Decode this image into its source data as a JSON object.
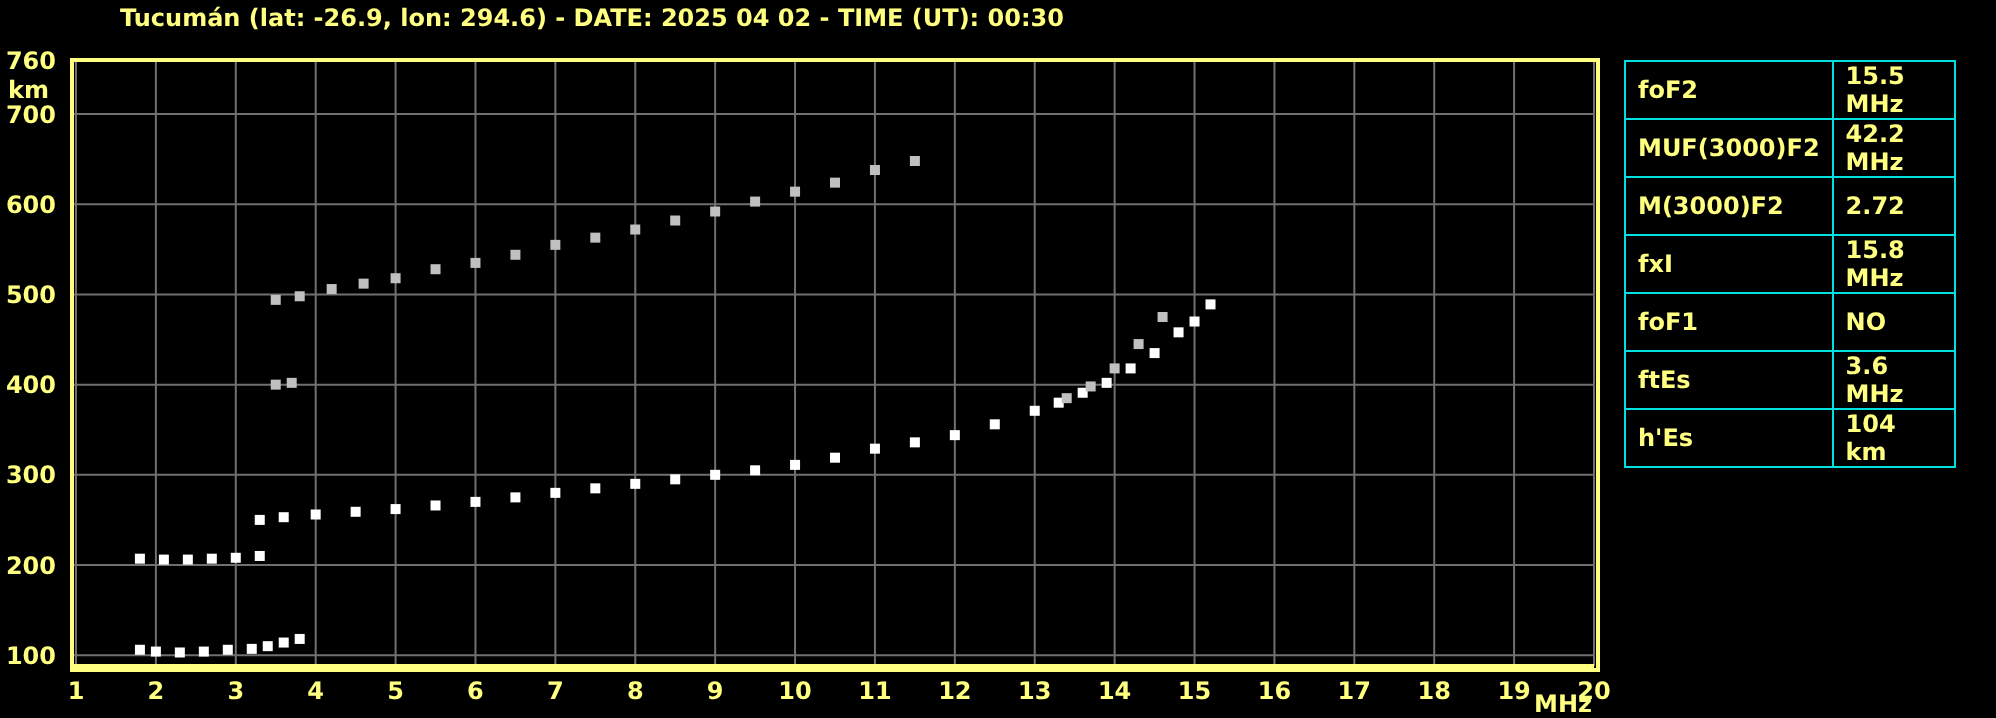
{
  "chart_data": [
    {
      "type": "scatter",
      "title": "Tucumán (lat: -26.9, lon: 294.6) - DATE: 2025 04 02 - TIME (UT): 00:30",
      "xlabel": "MHz",
      "ylabel": "km",
      "xlim": [
        0.95,
        20
      ],
      "ylim": [
        88,
        760
      ],
      "xticks": [
        1,
        2,
        3,
        4,
        5,
        6,
        7,
        8,
        9,
        10,
        11,
        12,
        13,
        14,
        15,
        16,
        17,
        18,
        19,
        20
      ],
      "yticks": [
        100,
        200,
        300,
        400,
        500,
        600,
        700,
        760
      ],
      "grid": true,
      "legend": false,
      "marker": "square",
      "series": [
        {
          "color": "#ffffff",
          "x": [
            1.8,
            2.0,
            2.3,
            2.6,
            2.9,
            3.2,
            3.4,
            3.6,
            3.8
          ],
          "values": [
            106,
            104,
            103,
            104,
            106,
            107,
            110,
            114,
            118
          ]
        },
        {
          "color": "#ffffff",
          "x": [
            1.8,
            2.1,
            2.4,
            2.7,
            3.0,
            3.3
          ],
          "values": [
            207,
            206,
            206,
            207,
            208,
            210
          ]
        },
        {
          "color": "#ffffff",
          "x": [
            3.3,
            3.6,
            4.0,
            4.5,
            5.0,
            5.5,
            6.0,
            6.5,
            7.0,
            7.5,
            8.0,
            8.5,
            9.0,
            9.5,
            10.0,
            10.5,
            11.0,
            11.5,
            12.0,
            12.5,
            13.0,
            13.3,
            13.6,
            13.9,
            14.2,
            14.5,
            14.8,
            15.0,
            15.2
          ],
          "values": [
            250,
            253,
            256,
            259,
            262,
            266,
            270,
            275,
            280,
            285,
            290,
            295,
            300,
            305,
            311,
            319,
            329,
            336,
            344,
            356,
            371,
            380,
            391,
            402,
            418,
            435,
            458,
            470,
            489
          ]
        },
        {
          "color": "#c0c0c0",
          "x": [
            13.4,
            13.7,
            14.0,
            14.3,
            14.6
          ],
          "values": [
            385,
            398,
            418,
            445,
            475
          ]
        },
        {
          "color": "#c0c0c0",
          "x": [
            3.5,
            3.8,
            4.2,
            4.6,
            5.0,
            5.5,
            6.0,
            6.5,
            7.0,
            7.5,
            8.0,
            8.5,
            9.0,
            9.5,
            10.0,
            10.5,
            11.0,
            11.5
          ],
          "values": [
            494,
            498,
            506,
            512,
            518,
            528,
            535,
            544,
            555,
            563,
            572,
            582,
            592,
            603,
            614,
            624,
            638,
            648
          ]
        },
        {
          "color": "#c0c0c0",
          "x": [
            3.5,
            3.7
          ],
          "values": [
            400,
            402
          ]
        }
      ]
    },
    {
      "type": "other",
      "categories": [
        "foF2",
        "MUF(3000)F2",
        "M(3000)F2",
        "fxI",
        "foF1",
        "ftEs",
        "h'Es"
      ],
      "value_labels": [
        "15.5 MHz",
        "42.2 MHz",
        "2.72",
        "15.8 MHz",
        "NO",
        "3.6 MHz",
        "104 km"
      ]
    }
  ]
}
